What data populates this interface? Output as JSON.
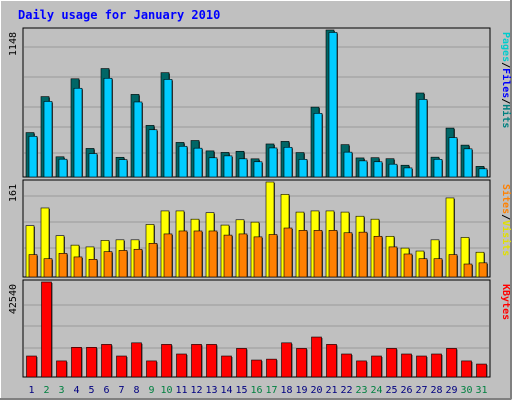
{
  "chart_data": {
    "type": "bar",
    "title": "Daily usage for January 2010",
    "categories": [
      "1",
      "2",
      "3",
      "4",
      "5",
      "6",
      "7",
      "8",
      "9",
      "10",
      "11",
      "12",
      "13",
      "14",
      "15",
      "16",
      "17",
      "18",
      "19",
      "20",
      "21",
      "22",
      "23",
      "24",
      "25",
      "26",
      "27",
      "28",
      "29",
      "30",
      "31"
    ],
    "weekend_days": [
      "2",
      "3",
      "9",
      "10",
      "16",
      "17",
      "23",
      "24",
      "30",
      "31"
    ],
    "panels": [
      {
        "id": "top",
        "ymax": 1148,
        "ymax_label": "1148",
        "side_label_parts": [
          "Pages",
          "/",
          "Files",
          "/",
          "Hits"
        ],
        "series": [
          {
            "name": "Hits",
            "color": "#006666",
            "values": [
              347,
              628,
              158,
              767,
              223,
              847,
              154,
              645,
              403,
              815,
              270,
              285,
              204,
              192,
              201,
              142,
              258,
              278,
              191,
              546,
              1148,
              253,
              149,
              151,
              143,
              92,
              656,
              155,
              382,
              249,
              83
            ]
          },
          {
            "name": "Files",
            "color": "#00ccff",
            "values": [
              318,
              590,
              139,
              693,
              183,
              771,
              136,
              586,
              369,
              762,
              240,
              225,
              150,
              165,
              142,
              119,
              227,
              232,
              138,
              497,
              1129,
              194,
              126,
              119,
              100,
              71,
              606,
              138,
              308,
              220,
              64
            ]
          }
        ]
      },
      {
        "id": "middle",
        "ymax": 161,
        "ymax_label": "161",
        "side_label_parts": [
          "Sites",
          "/",
          "Visits"
        ],
        "series": [
          {
            "name": "Visits",
            "color": "#ffff00",
            "values": [
              87,
              117,
              70,
              54,
              51,
              62,
              63,
              63,
              89,
              112,
              112,
              98,
              109,
              88,
              97,
              93,
              161,
              140,
              110,
              112,
              112,
              110,
              103,
              98,
              69,
              49,
              44,
              63,
              134,
              67,
              42
            ]
          },
          {
            "name": "Sites",
            "color": "#ff8000",
            "values": [
              38,
              31,
              40,
              34,
              30,
              43,
              45,
              47,
              57,
              73,
              78,
              78,
              78,
              71,
              73,
              68,
              72,
              83,
              79,
              79,
              79,
              75,
              76,
              69,
              51,
              39,
              31,
              31,
              38,
              22,
              24
            ]
          }
        ]
      },
      {
        "id": "bottom",
        "ymax": 42540,
        "ymax_label": "42540",
        "side_label_parts": [
          "KBytes"
        ],
        "series": [
          {
            "name": "KBytes",
            "color": "#ff0000",
            "values": [
              9400,
              42540,
              7200,
              13300,
              13300,
              14600,
              9400,
              15300,
              7200,
              14600,
              10300,
              14600,
              14600,
              9400,
              12800,
              7600,
              8000,
              15300,
              12800,
              17900,
              14600,
              10300,
              7200,
              9400,
              12800,
              10300,
              9400,
              10300,
              12800,
              7200,
              5800
            ]
          }
        ]
      }
    ],
    "colors": {
      "background": "#c0c0c0",
      "plot_background": "#c0c0c0",
      "grid": "#999999",
      "title": "#0000ff",
      "day_label": "#000080",
      "weekend_label": "#008040",
      "side_label_colors": [
        "#00cccc",
        "#000000",
        "#0000ff",
        "#000000",
        "#008080"
      ],
      "middle_label_colors": [
        "#ff8000",
        "#000000",
        "#e0e000"
      ],
      "bottom_label_colors": [
        "#ff0000"
      ]
    }
  }
}
